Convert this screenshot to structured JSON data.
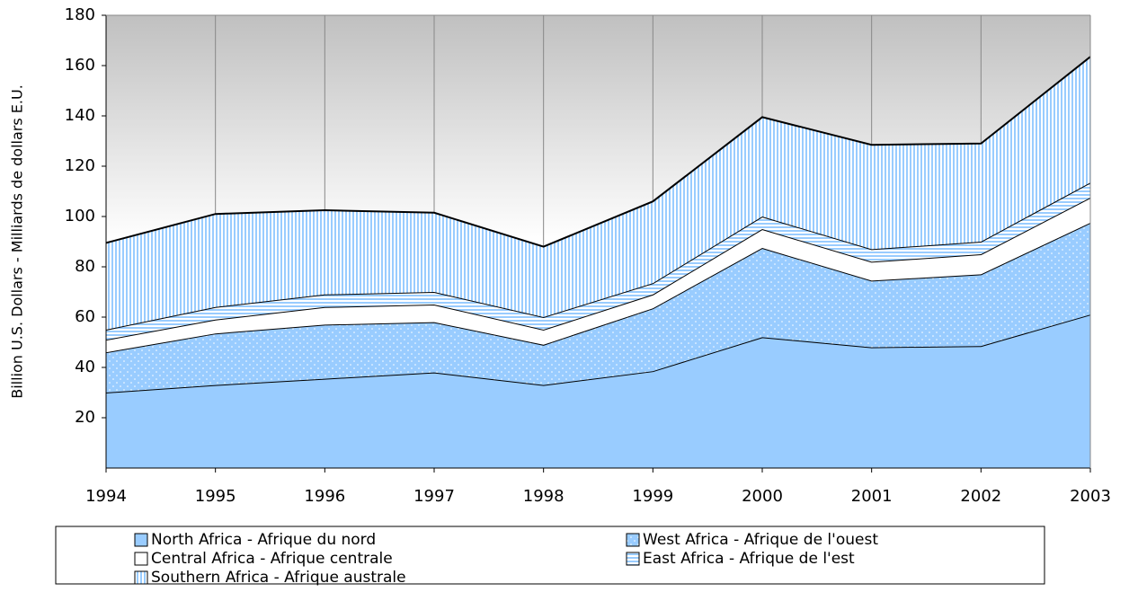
{
  "chart_data": {
    "type": "area",
    "stacked": true,
    "y_label": "Billion U.S. Dollars - Milliards de dollars E.U.",
    "categories": [
      "1994",
      "1995",
      "1996",
      "1997",
      "1998",
      "1999",
      "2000",
      "2001",
      "2002",
      "2003"
    ],
    "series": [
      {
        "name": "North Africa - Afrique du nord",
        "color": "#99ccff",
        "values": [
          30,
          33,
          35.5,
          38,
          33,
          38.5,
          52,
          48,
          48.5,
          61
        ]
      },
      {
        "name": "West Africa - Afrique de l'ouest",
        "color": "#99ccff",
        "values": [
          16,
          20.5,
          21.5,
          20,
          16,
          25,
          35.5,
          26.5,
          28.5,
          36.5
        ]
      },
      {
        "name": "Central Africa - Afrique centrale",
        "color": "#ffffff",
        "values": [
          5,
          5.5,
          7,
          7,
          6,
          5.5,
          7.5,
          7.5,
          8,
          10
        ]
      },
      {
        "name": "East Africa - Afrique de l'est",
        "color": "#99ccff",
        "values": [
          4,
          5,
          5,
          5,
          5,
          4.5,
          5,
          5,
          5,
          6
        ]
      },
      {
        "name": "Southern Africa - Afrique australe",
        "color": "#99ccff",
        "values": [
          34.5,
          37,
          33.5,
          31.5,
          28,
          32.5,
          39.5,
          41.5,
          39,
          50
        ]
      }
    ],
    "ylim": [
      0,
      180
    ],
    "yticks": [
      20,
      40,
      60,
      80,
      100,
      120,
      140,
      160,
      180
    ],
    "grid": true
  }
}
